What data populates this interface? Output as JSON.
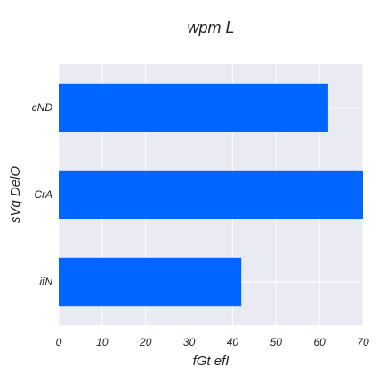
{
  "chart_data": {
    "type": "bar",
    "orientation": "horizontal",
    "title": "wpm L",
    "xlabel": "fGt efI",
    "ylabel": "sVq DelO",
    "categories": [
      "cND",
      "CrA",
      "ifN"
    ],
    "values": [
      62,
      70,
      42
    ],
    "xlim": [
      0,
      70
    ],
    "xticks": [
      "0",
      "10",
      "20",
      "30",
      "40",
      "50",
      "60",
      "70"
    ],
    "grid": true,
    "legend": "none",
    "colors": {
      "bar": "#0066ff",
      "plot_background": "#eaeaf2",
      "grid": "#ffffff"
    }
  }
}
